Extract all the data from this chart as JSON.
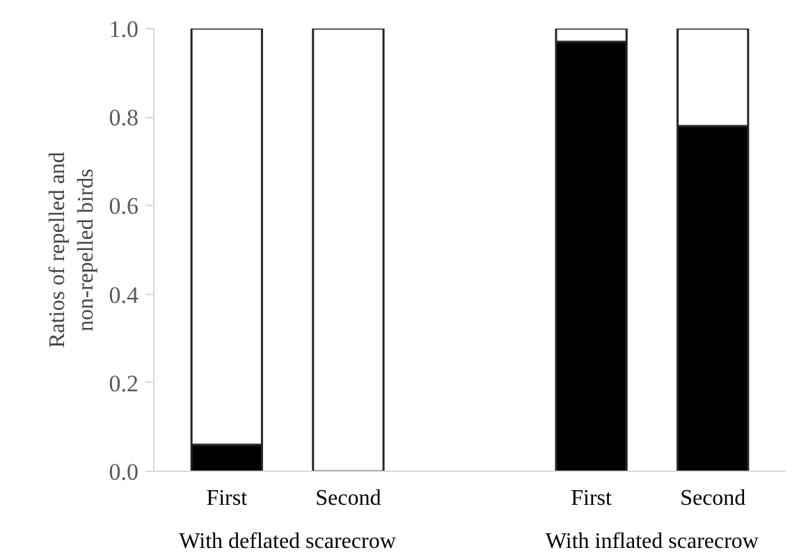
{
  "chart_data": {
    "type": "bar",
    "stacked": true,
    "ylabel": "Ratios of repelled and\nnon-repelled birds",
    "categories": [
      "First",
      "Second",
      null,
      "First",
      "Second"
    ],
    "series": [
      {
        "color": "#000000",
        "values": [
          0.06,
          0,
          null,
          0.97,
          0.78
        ]
      },
      {
        "color": "#ffffff",
        "values": [
          0.94,
          1,
          null,
          0.03,
          0.22
        ]
      }
    ],
    "ylim": [
      0,
      1.0
    ],
    "yticks": [
      {
        "value": 0,
        "label": "0.0"
      },
      {
        "value": 0.2,
        "label": "0.2"
      },
      {
        "value": 0.4,
        "label": "0.4"
      },
      {
        "value": 0.6,
        "label": "0.6"
      },
      {
        "value": 0.8,
        "label": "0.8"
      },
      {
        "value": 1.0,
        "label": "1.0"
      }
    ],
    "annotations": [
      "With deflated scarecrow",
      "With inflated scarecrow"
    ],
    "grid": false
  }
}
